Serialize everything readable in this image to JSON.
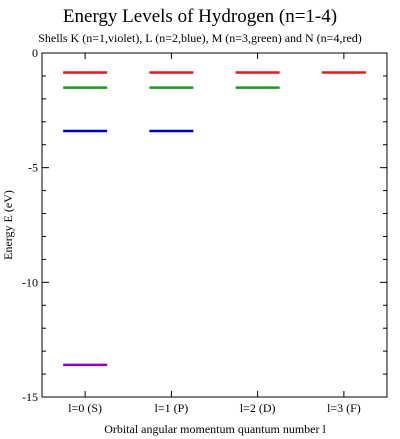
{
  "chart_data": {
    "type": "energy-level-diagram",
    "title": "Energy Levels of Hydrogen (n=1-4)",
    "subtitle": "Shells K (n=1,violet), L (n=2,blue), M (n=3,green) and N (n=4,red)",
    "xlabel": "Orbital angular momentum quantum number l",
    "ylabel": "Energy E (eV)",
    "ylim": [
      -15,
      0
    ],
    "y_ticks": [
      0,
      -5,
      -10,
      -15
    ],
    "categories": [
      "l=0 (S)",
      "l=1 (P)",
      "l=2 (D)",
      "l=3 (F)"
    ],
    "grid": false,
    "series": [
      {
        "name": "K",
        "n": 1,
        "color": "#9400d3",
        "l_values": [
          0
        ],
        "energy": -13.6
      },
      {
        "name": "L",
        "n": 2,
        "color": "#0000cd",
        "l_values": [
          0,
          1
        ],
        "energy": -3.4
      },
      {
        "name": "M",
        "n": 3,
        "color": "#1a9a1a",
        "l_values": [
          0,
          1,
          2
        ],
        "energy": -1.51
      },
      {
        "name": "N",
        "n": 4,
        "color": "#e8171b",
        "l_values": [
          0,
          1,
          2,
          3
        ],
        "energy": -0.85
      }
    ]
  }
}
